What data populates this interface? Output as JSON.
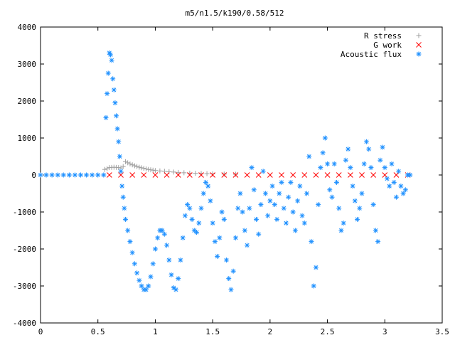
{
  "chart_data": {
    "type": "scatter",
    "title": "m5/n1.5/k190/0.58/512",
    "xlabel": "",
    "ylabel": "",
    "xlim": [
      0,
      3.5
    ],
    "ylim": [
      -4000,
      4000
    ],
    "xticks": [
      {
        "v": 0,
        "label": "0"
      },
      {
        "v": 0.5,
        "label": "0.5"
      },
      {
        "v": 1,
        "label": "1"
      },
      {
        "v": 1.5,
        "label": "1.5"
      },
      {
        "v": 2,
        "label": "2"
      },
      {
        "v": 2.5,
        "label": "2.5"
      },
      {
        "v": 3,
        "label": "3"
      },
      {
        "v": 3.5,
        "label": "3.5"
      }
    ],
    "yticks": [
      {
        "v": -4000,
        "label": "-4000"
      },
      {
        "v": -3000,
        "label": "-3000"
      },
      {
        "v": -2000,
        "label": "-2000"
      },
      {
        "v": -1000,
        "label": "-1000"
      },
      {
        "v": 0,
        "label": "0"
      },
      {
        "v": 1000,
        "label": "1000"
      },
      {
        "v": 2000,
        "label": "2000"
      },
      {
        "v": 3000,
        "label": "3000"
      },
      {
        "v": 4000,
        "label": "4000"
      }
    ],
    "grid": false,
    "legend_position": "top-right",
    "series": [
      {
        "name": "R stress",
        "marker": "plus",
        "color": "#a0a0a0",
        "points": [
          [
            0.56,
            150
          ],
          [
            0.58,
            170
          ],
          [
            0.6,
            200
          ],
          [
            0.62,
            205
          ],
          [
            0.64,
            210
          ],
          [
            0.66,
            205
          ],
          [
            0.68,
            200
          ],
          [
            0.7,
            190
          ],
          [
            0.72,
            230
          ],
          [
            0.74,
            360
          ],
          [
            0.76,
            330
          ],
          [
            0.78,
            300
          ],
          [
            0.8,
            275
          ],
          [
            0.82,
            250
          ],
          [
            0.84,
            230
          ],
          [
            0.86,
            210
          ],
          [
            0.88,
            195
          ],
          [
            0.9,
            180
          ],
          [
            0.92,
            165
          ],
          [
            0.94,
            150
          ],
          [
            0.96,
            140
          ],
          [
            0.98,
            130
          ],
          [
            1.0,
            120
          ],
          [
            1.04,
            110
          ],
          [
            1.08,
            100
          ],
          [
            1.12,
            90
          ],
          [
            1.16,
            80
          ],
          [
            1.2,
            70
          ],
          [
            1.25,
            60
          ],
          [
            1.3,
            50
          ],
          [
            1.35,
            45
          ],
          [
            1.4,
            40
          ],
          [
            1.45,
            35
          ],
          [
            1.5,
            30
          ],
          [
            1.6,
            25
          ],
          [
            1.7,
            20
          ]
        ]
      },
      {
        "name": "G work",
        "marker": "cross",
        "color": "#ff0000",
        "points": [
          [
            0.6,
            0
          ],
          [
            0.7,
            0
          ],
          [
            0.8,
            0
          ],
          [
            0.9,
            0
          ],
          [
            1.0,
            0
          ],
          [
            1.1,
            0
          ],
          [
            1.2,
            0
          ],
          [
            1.3,
            0
          ],
          [
            1.4,
            0
          ],
          [
            1.5,
            0
          ],
          [
            1.6,
            0
          ],
          [
            1.7,
            0
          ],
          [
            1.8,
            0
          ],
          [
            1.9,
            0
          ],
          [
            2.0,
            0
          ],
          [
            2.1,
            0
          ],
          [
            2.2,
            0
          ],
          [
            2.3,
            0
          ],
          [
            2.4,
            0
          ],
          [
            2.5,
            0
          ],
          [
            2.6,
            0
          ],
          [
            2.7,
            0
          ],
          [
            2.8,
            0
          ],
          [
            2.9,
            0
          ],
          [
            3.0,
            0
          ],
          [
            3.1,
            0
          ],
          [
            3.2,
            0
          ]
        ]
      },
      {
        "name": "Acoustic flux",
        "marker": "star",
        "color": "#1e90ff",
        "points": [
          [
            0.0,
            0
          ],
          [
            0.05,
            0
          ],
          [
            0.1,
            0
          ],
          [
            0.15,
            0
          ],
          [
            0.2,
            0
          ],
          [
            0.25,
            0
          ],
          [
            0.3,
            0
          ],
          [
            0.35,
            0
          ],
          [
            0.4,
            0
          ],
          [
            0.45,
            0
          ],
          [
            0.5,
            0
          ],
          [
            0.55,
            0
          ],
          [
            0.57,
            1550
          ],
          [
            0.58,
            2200
          ],
          [
            0.59,
            2750
          ],
          [
            0.6,
            3300
          ],
          [
            0.61,
            3250
          ],
          [
            0.62,
            3100
          ],
          [
            0.63,
            2600
          ],
          [
            0.64,
            2300
          ],
          [
            0.65,
            1950
          ],
          [
            0.66,
            1600
          ],
          [
            0.67,
            1250
          ],
          [
            0.68,
            900
          ],
          [
            0.69,
            500
          ],
          [
            0.7,
            100
          ],
          [
            0.71,
            -300
          ],
          [
            0.72,
            -600
          ],
          [
            0.73,
            -900
          ],
          [
            0.74,
            -1200
          ],
          [
            0.76,
            -1500
          ],
          [
            0.78,
            -1800
          ],
          [
            0.8,
            -2100
          ],
          [
            0.82,
            -2400
          ],
          [
            0.84,
            -2650
          ],
          [
            0.86,
            -2850
          ],
          [
            0.88,
            -3000
          ],
          [
            0.9,
            -3100
          ],
          [
            0.92,
            -3100
          ],
          [
            0.94,
            -3000
          ],
          [
            0.96,
            -2750
          ],
          [
            0.98,
            -2400
          ],
          [
            1.0,
            -2000
          ],
          [
            1.02,
            -1700
          ],
          [
            1.04,
            -1500
          ],
          [
            1.06,
            -1500
          ],
          [
            1.08,
            -1600
          ],
          [
            1.1,
            -1900
          ],
          [
            1.12,
            -2300
          ],
          [
            1.14,
            -2700
          ],
          [
            1.16,
            -3050
          ],
          [
            1.18,
            -3100
          ],
          [
            1.2,
            -2800
          ],
          [
            1.22,
            -2300
          ],
          [
            1.24,
            -1700
          ],
          [
            1.26,
            -1100
          ],
          [
            1.28,
            -800
          ],
          [
            1.3,
            -900
          ],
          [
            1.32,
            -1200
          ],
          [
            1.34,
            -1500
          ],
          [
            1.36,
            -1550
          ],
          [
            1.38,
            -1300
          ],
          [
            1.4,
            -900
          ],
          [
            1.42,
            -500
          ],
          [
            1.44,
            -200
          ],
          [
            1.46,
            -300
          ],
          [
            1.48,
            -700
          ],
          [
            1.5,
            -1300
          ],
          [
            1.52,
            -1800
          ],
          [
            1.54,
            -2200
          ],
          [
            1.56,
            -1700
          ],
          [
            1.58,
            -1000
          ],
          [
            1.6,
            -1200
          ],
          [
            1.62,
            -2300
          ],
          [
            1.64,
            -2800
          ],
          [
            1.66,
            -3100
          ],
          [
            1.68,
            -2600
          ],
          [
            1.7,
            -1700
          ],
          [
            1.72,
            -900
          ],
          [
            1.74,
            -500
          ],
          [
            1.76,
            -1000
          ],
          [
            1.78,
            -1500
          ],
          [
            1.8,
            -1900
          ],
          [
            1.82,
            -900
          ],
          [
            1.84,
            200
          ],
          [
            1.86,
            -400
          ],
          [
            1.88,
            -1200
          ],
          [
            1.9,
            -1600
          ],
          [
            1.92,
            -800
          ],
          [
            1.94,
            100
          ],
          [
            1.96,
            -500
          ],
          [
            1.98,
            -1100
          ],
          [
            2.0,
            -700
          ],
          [
            2.02,
            -300
          ],
          [
            2.04,
            -800
          ],
          [
            2.06,
            -1200
          ],
          [
            2.08,
            -500
          ],
          [
            2.1,
            -200
          ],
          [
            2.12,
            -900
          ],
          [
            2.14,
            -1300
          ],
          [
            2.16,
            -600
          ],
          [
            2.18,
            -200
          ],
          [
            2.2,
            -1000
          ],
          [
            2.22,
            -1500
          ],
          [
            2.24,
            -700
          ],
          [
            2.26,
            -300
          ],
          [
            2.28,
            -1100
          ],
          [
            2.3,
            -1300
          ],
          [
            2.32,
            -500
          ],
          [
            2.34,
            500
          ],
          [
            2.36,
            -1800
          ],
          [
            2.38,
            -3000
          ],
          [
            2.4,
            -2500
          ],
          [
            2.42,
            -800
          ],
          [
            2.44,
            200
          ],
          [
            2.46,
            600
          ],
          [
            2.48,
            1000
          ],
          [
            2.5,
            300
          ],
          [
            2.52,
            -400
          ],
          [
            2.54,
            -600
          ],
          [
            2.56,
            300
          ],
          [
            2.58,
            -200
          ],
          [
            2.6,
            -900
          ],
          [
            2.62,
            -1500
          ],
          [
            2.64,
            -1300
          ],
          [
            2.66,
            400
          ],
          [
            2.68,
            700
          ],
          [
            2.7,
            200
          ],
          [
            2.72,
            -300
          ],
          [
            2.74,
            -700
          ],
          [
            2.76,
            -1200
          ],
          [
            2.78,
            -900
          ],
          [
            2.8,
            -500
          ],
          [
            2.82,
            300
          ],
          [
            2.84,
            900
          ],
          [
            2.86,
            700
          ],
          [
            2.88,
            200
          ],
          [
            2.9,
            -800
          ],
          [
            2.92,
            -1500
          ],
          [
            2.94,
            -1800
          ],
          [
            2.96,
            400
          ],
          [
            2.98,
            750
          ],
          [
            3.0,
            200
          ],
          [
            3.02,
            -100
          ],
          [
            3.04,
            -300
          ],
          [
            3.06,
            300
          ],
          [
            3.08,
            -200
          ],
          [
            3.1,
            -600
          ],
          [
            3.12,
            100
          ],
          [
            3.14,
            -300
          ],
          [
            3.16,
            -500
          ],
          [
            3.18,
            -400
          ],
          [
            3.2,
            0
          ],
          [
            3.22,
            0
          ]
        ]
      }
    ]
  }
}
